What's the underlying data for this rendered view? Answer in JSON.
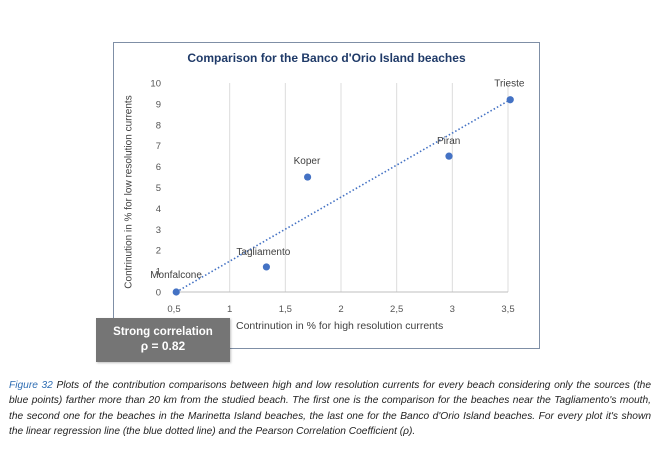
{
  "chart_data": {
    "type": "scatter",
    "title": "Comparison for the Banco d'Orio Island beaches",
    "xlabel": "Contrinution in % for high resolution currents",
    "ylabel": "Contrinution in % for low resolution currents",
    "xlim": [
      0.5,
      3.5
    ],
    "ylim": [
      0,
      10
    ],
    "x_ticks": [
      "0,5",
      "1",
      "1,5",
      "2",
      "2,5",
      "3",
      "3,5"
    ],
    "x_tick_values": [
      0.5,
      1,
      1.5,
      2,
      2.5,
      3,
      3.5
    ],
    "y_ticks": [
      "0",
      "1",
      "2",
      "3",
      "4",
      "5",
      "6",
      "7",
      "8",
      "9",
      "10"
    ],
    "y_tick_values": [
      0,
      1,
      2,
      3,
      4,
      5,
      6,
      7,
      8,
      9,
      10
    ],
    "grid": "vertical",
    "points": [
      {
        "label": "Monfalcone",
        "x": 0.52,
        "y": 0.0
      },
      {
        "label": "Tagliamento",
        "x": 1.33,
        "y": 1.2
      },
      {
        "label": "Koper",
        "x": 1.7,
        "y": 5.5
      },
      {
        "label": "Piran",
        "x": 2.97,
        "y": 6.5
      },
      {
        "label": "Trieste",
        "x": 3.52,
        "y": 9.2
      }
    ],
    "trendline": {
      "style": "dotted",
      "from": {
        "x": 0.52,
        "y": 0.0
      },
      "to": {
        "x": 3.52,
        "y": 9.2
      }
    },
    "point_color": "#4472c4",
    "trend_color": "#4472c4"
  },
  "correlation": {
    "line1": "Strong correlation",
    "line2": "ρ = 0.82"
  },
  "caption": {
    "label": "Figure 32",
    "text": " Plots of the contribution comparisons between high and low resolution currents for every beach considering only the sources (the blue points) farther more than 20 km from the studied beach. The first one is the comparison for the beaches near the Tagliamento's mouth, the second one for the beaches in the Marinetta Island beaches, the last one for the Banco d'Orio Island beaches. For every plot it's shown the linear regression line (the blue dotted line) and the Pearson Correlation Coefficient (ρ)."
  }
}
